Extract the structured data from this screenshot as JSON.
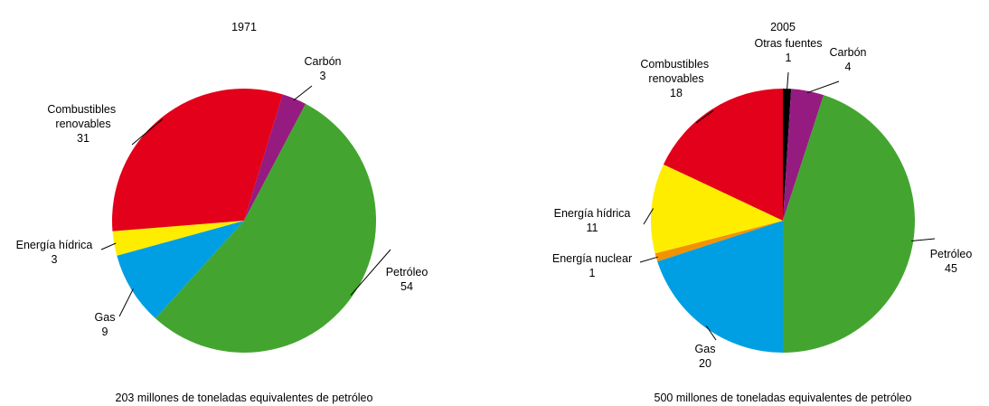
{
  "chart_data": [
    {
      "type": "pie",
      "title": "1971",
      "subtitle": "203 millones de toneladas equivalentes de petróleo",
      "categories": [
        "Carbón",
        "Petróleo",
        "Gas",
        "Energía hídrica",
        "Combustibles renovables"
      ],
      "values": [
        3,
        54,
        9,
        3,
        31
      ],
      "colors": [
        "#951b81",
        "#43a52f",
        "#009fe3",
        "#ffed00",
        "#e2001a"
      ]
    },
    {
      "type": "pie",
      "title": "2005",
      "subtitle": "500 millones de toneladas equivalentes de petróleo",
      "categories": [
        "Otras fuentes",
        "Carbón",
        "Petróleo",
        "Gas",
        "Energía nuclear",
        "Energía hídrica",
        "Combustibles renovables"
      ],
      "values": [
        1,
        4,
        45,
        20,
        1,
        11,
        18
      ],
      "colors": [
        "#000000",
        "#951b81",
        "#43a52f",
        "#009fe3",
        "#f39200",
        "#ffed00",
        "#e2001a"
      ]
    }
  ]
}
